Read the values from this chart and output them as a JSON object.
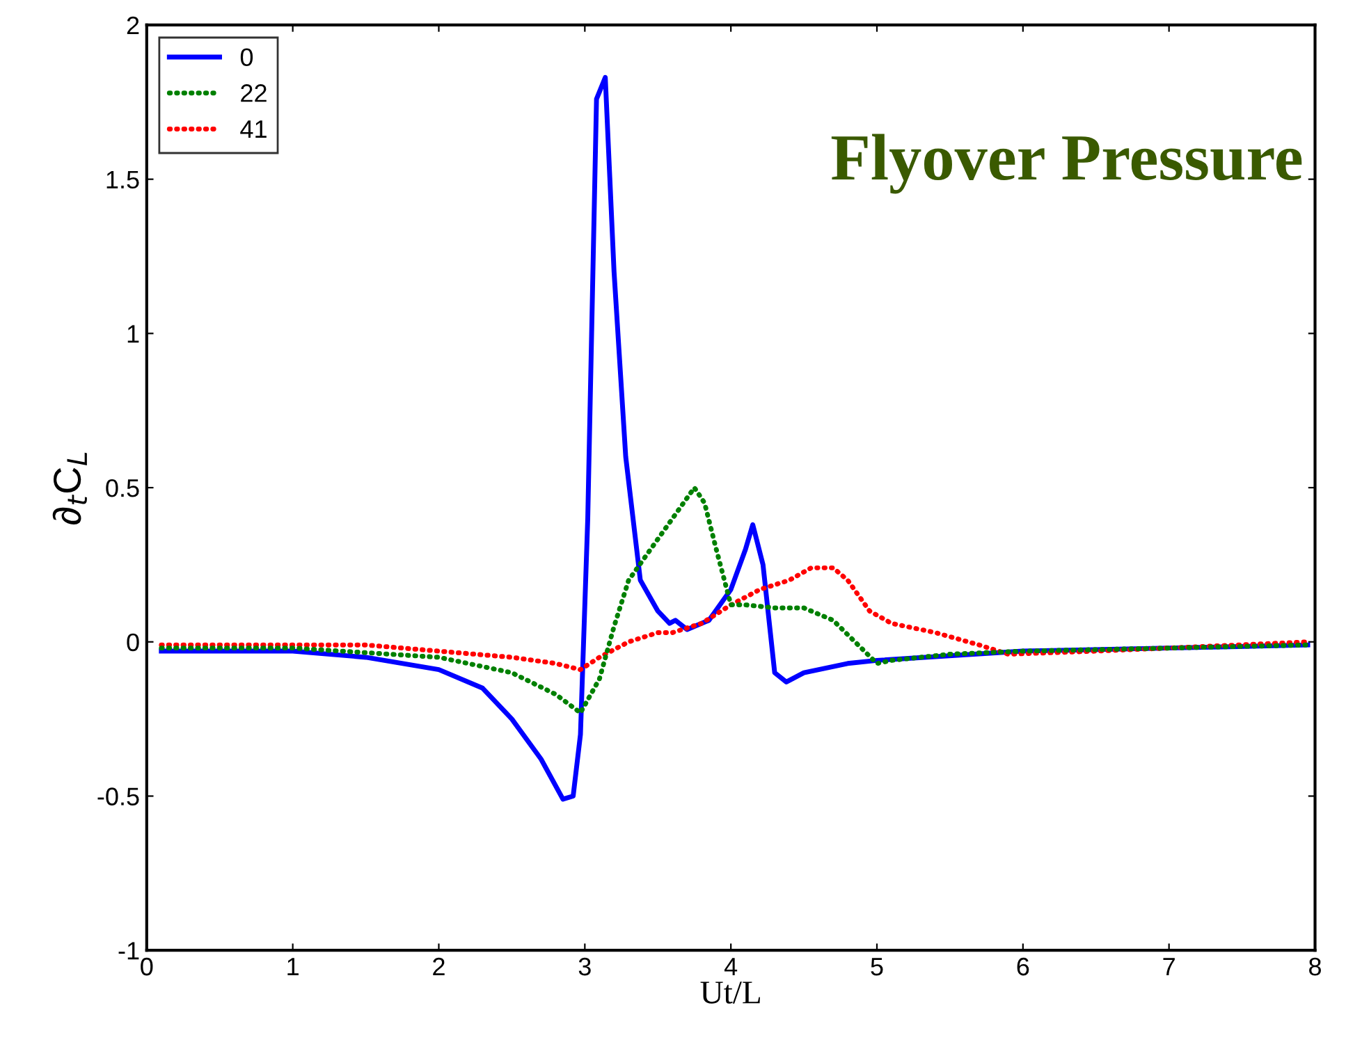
{
  "chart_data": {
    "type": "line",
    "xlabel": "Ut/L",
    "ylabel": "∂$_{t}$C$_{L}$",
    "annotations": [
      "Flyover Pressure"
    ],
    "xlim": [
      0,
      8
    ],
    "ylim": [
      -1,
      2
    ],
    "xticks": [
      0,
      1,
      2,
      3,
      4,
      5,
      6,
      7,
      8
    ],
    "yticks": [
      -1,
      -0.5,
      0,
      0.5,
      1,
      1.5,
      2
    ],
    "grid": false,
    "legend": "top left",
    "series": [
      {
        "name": "0",
        "color": "#0000ff",
        "line_style": "solid",
        "x": [
          0.1,
          1.0,
          1.5,
          2.0,
          2.3,
          2.5,
          2.7,
          2.85,
          2.92,
          2.97,
          3.02,
          3.08,
          3.14,
          3.2,
          3.28,
          3.38,
          3.5,
          3.58,
          3.62,
          3.7,
          3.85,
          4.0,
          4.1,
          4.15,
          4.22,
          4.3,
          4.38,
          4.5,
          4.8,
          5.0,
          6.0,
          7.0,
          7.95
        ],
        "values": [
          -0.03,
          -0.03,
          -0.05,
          -0.09,
          -0.15,
          -0.25,
          -0.38,
          -0.51,
          -0.5,
          -0.3,
          0.4,
          1.76,
          1.83,
          1.2,
          0.6,
          0.2,
          0.1,
          0.06,
          0.07,
          0.04,
          0.07,
          0.17,
          0.3,
          0.38,
          0.25,
          -0.1,
          -0.13,
          -0.1,
          -0.07,
          -0.06,
          -0.03,
          -0.02,
          -0.01
        ]
      },
      {
        "name": "22",
        "color": "#008000",
        "line_style": "dotted",
        "x": [
          0.1,
          1.0,
          2.0,
          2.5,
          2.8,
          2.97,
          3.1,
          3.2,
          3.3,
          3.45,
          3.6,
          3.75,
          3.82,
          3.9,
          4.0,
          4.1,
          4.3,
          4.5,
          4.7,
          4.85,
          5.0,
          5.1,
          5.5,
          6.0,
          7.0,
          7.95
        ],
        "values": [
          -0.02,
          -0.02,
          -0.05,
          -0.1,
          -0.17,
          -0.23,
          -0.12,
          0.05,
          0.2,
          0.3,
          0.4,
          0.5,
          0.45,
          0.3,
          0.12,
          0.12,
          0.11,
          0.11,
          0.07,
          0.0,
          -0.07,
          -0.06,
          -0.04,
          -0.03,
          -0.02,
          -0.01
        ]
      },
      {
        "name": "41",
        "color": "#ff0000",
        "line_style": "dotted",
        "x": [
          0.1,
          1.5,
          2.0,
          2.5,
          2.8,
          2.97,
          3.1,
          3.3,
          3.5,
          3.6,
          3.8,
          4.0,
          4.2,
          4.4,
          4.55,
          4.7,
          4.8,
          4.95,
          5.1,
          5.4,
          5.7,
          5.9,
          6.5,
          7.0,
          7.95
        ],
        "values": [
          -0.01,
          -0.01,
          -0.03,
          -0.05,
          -0.07,
          -0.09,
          -0.05,
          0.0,
          0.03,
          0.03,
          0.06,
          0.12,
          0.17,
          0.2,
          0.24,
          0.24,
          0.2,
          0.1,
          0.06,
          0.03,
          -0.01,
          -0.04,
          -0.03,
          -0.02,
          0.0
        ]
      }
    ]
  }
}
